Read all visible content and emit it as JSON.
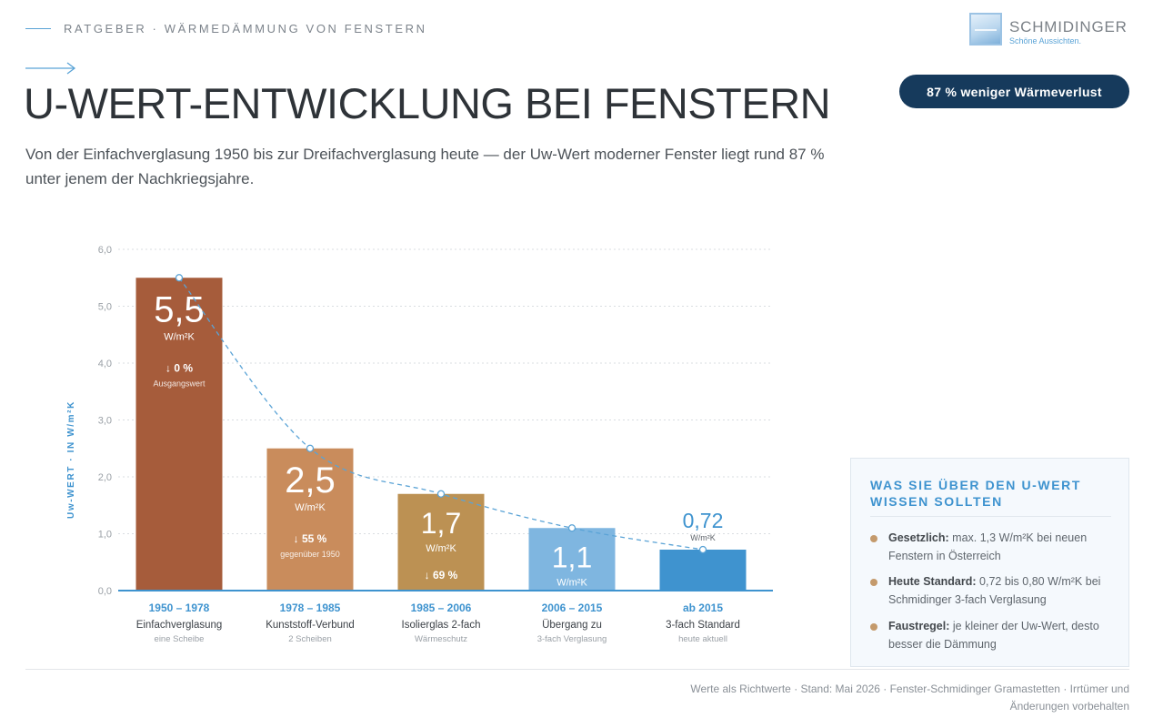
{
  "header": {
    "eyebrow": "RATGEBER · WÄRMEDÄMMUNG VON FENSTERN",
    "title": "U-WERT-ENTWICKLUNG BEI FENSTERN",
    "subtitle": "Von der Einfachverglasung 1950 bis zur Dreifachverglasung heute — der Uw-Wert moderner Fenster liegt rund 87 % unter jenem der Nachkriegsjahre."
  },
  "logo": {
    "name": "SCHMIDINGER",
    "tagline": "Schöne Aussichten."
  },
  "badge": "87 % weniger Wärmeverlust",
  "chart_data": {
    "type": "bar",
    "ylabel": "Uw-WERT · IN W/m²K",
    "ylim": [
      0,
      6
    ],
    "yticks": [
      "0,0",
      "1,0",
      "2,0",
      "3,0",
      "4,0",
      "5,0",
      "6,0"
    ],
    "grid": true,
    "trend_line": "dashed",
    "categories": [
      "1950 – 1978",
      "1978 – 1985",
      "1985 – 2006",
      "2006 – 2015",
      "ab 2015"
    ],
    "values": [
      5.5,
      2.5,
      1.7,
      1.1,
      0.72
    ],
    "value_labels": [
      "5,5",
      "2,5",
      "1,7",
      "1,1",
      "0,72"
    ],
    "unit": "W/m²K",
    "bars": [
      {
        "period": "1950 – 1978",
        "name": "Einfachverglasung",
        "detail": "eine Scheibe",
        "value": 5.5,
        "label": "5,5",
        "change": "↓ 0 %",
        "change_note": "Ausgangswert",
        "color": "#a65c3b"
      },
      {
        "period": "1978 – 1985",
        "name": "Kunststoff-Verbund",
        "detail": "2 Scheiben",
        "value": 2.5,
        "label": "2,5",
        "change": "↓ 55 %",
        "change_note": "gegenüber 1950",
        "color": "#c98c5c"
      },
      {
        "period": "1985 – 2006",
        "name": "Isolierglas 2-fach",
        "detail": "Wärmeschutz",
        "value": 1.7,
        "label": "1,7",
        "change": "↓ 69 %",
        "change_note": "",
        "color": "#bc9153"
      },
      {
        "period": "2006 – 2015",
        "name": "Übergang zu",
        "detail": "3-fach Verglasung",
        "value": 1.1,
        "label": "1,1",
        "change": "",
        "change_note": "",
        "color": "#7fb6e0"
      },
      {
        "period": "ab 2015",
        "name": "3-fach Standard",
        "detail": "heute aktuell",
        "value": 0.72,
        "label": "0,72",
        "change": "",
        "change_note": "",
        "color": "#3f93cf"
      }
    ]
  },
  "panel": {
    "title": "WAS SIE ÜBER DEN U-WERT WISSEN SOLLTEN",
    "items": [
      {
        "lead": "Gesetzlich:",
        "text": "max. 1,3 W/m²K bei neuen Fenstern in Österreich"
      },
      {
        "lead": "Heute Standard:",
        "text": "0,72 bis 0,80 W/m²K bei Schmidinger 3-fach Verglasung"
      },
      {
        "lead": "Faustregel:",
        "text": "je kleiner der Uw-Wert, desto besser die Dämmung"
      }
    ]
  },
  "footer": "Werte als Richtwerte · Stand: Mai 2026 · Fenster-Schmidinger Gramastetten · Irrtümer und Änderungen vorbehalten",
  "colors": {
    "accent": "#3e93cf",
    "badge": "#163a5c",
    "dot": "#c49a6c"
  }
}
